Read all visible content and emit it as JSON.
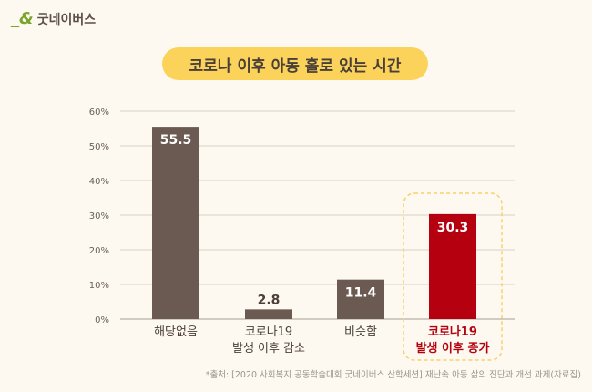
{
  "logo": {
    "text": "굿네이버스"
  },
  "chart_data": {
    "type": "bar",
    "title": "코로나 이후 아동 홀로 있는 시간",
    "categories": [
      [
        "해당없음"
      ],
      [
        "코로나19",
        "발생 이후 감소"
      ],
      [
        "비슷함"
      ],
      [
        "코로나19",
        "발생 이후 증가"
      ]
    ],
    "values": [
      55.5,
      2.8,
      11.4,
      30.3
    ],
    "data_labels": [
      "55.5",
      "2.8",
      "11.4",
      "30.3"
    ],
    "highlight_index": 3,
    "ylim": [
      0,
      60
    ],
    "yticks": [
      "0%",
      "10%",
      "20%",
      "30%",
      "40%",
      "50%",
      "60%"
    ],
    "grid": true,
    "colors": {
      "bar": "#6b5a52",
      "highlight": "#b5000f",
      "highlight_box": "#f3d36a",
      "grid": "#d8cfc3",
      "label": "#4a3f39"
    }
  },
  "source": "*출처: [2020 사회복지 공동학술대회 굿네이버스 산학세션] 재난속 아동 삶의 진단과 개선 과제(자료집)"
}
